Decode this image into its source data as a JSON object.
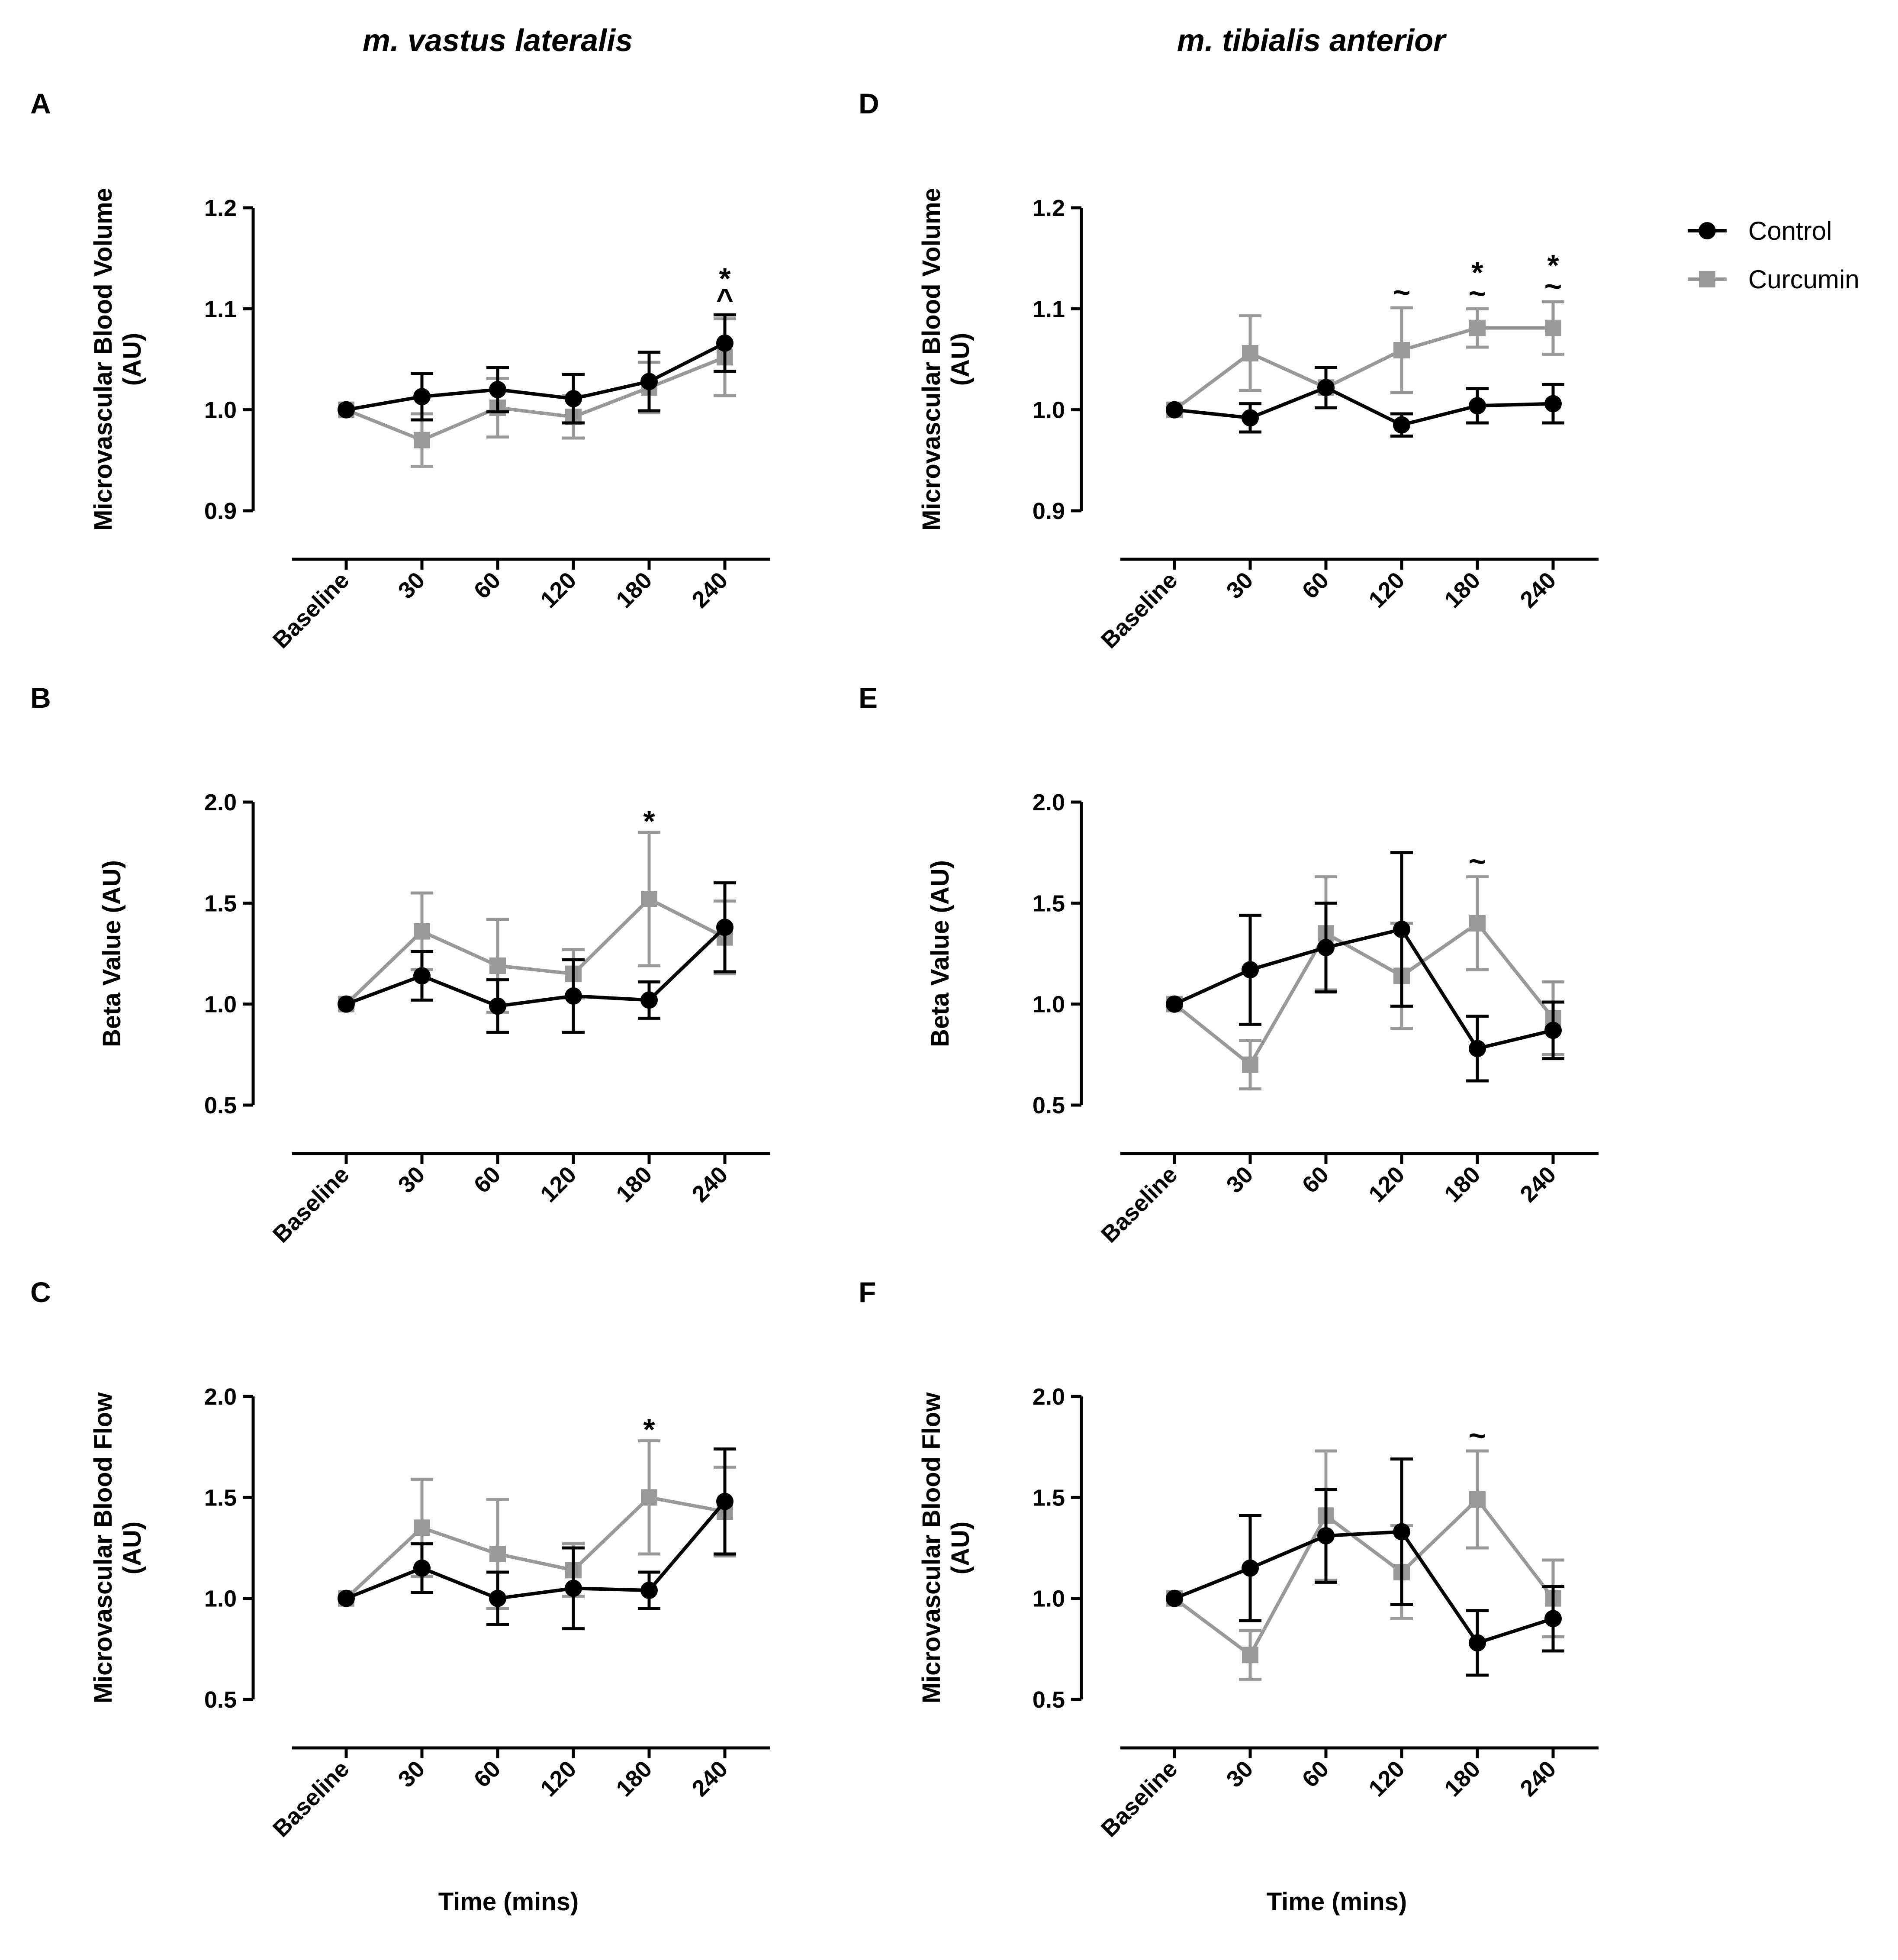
{
  "column_titles": [
    "m. vastus lateralis",
    "m. tibialis anterior"
  ],
  "legend": [
    {
      "label": "Control",
      "marker": "circle",
      "color": "#000000"
    },
    {
      "label": "Curcumin",
      "marker": "square",
      "color": "#999999"
    }
  ],
  "colors": {
    "control": "#000000",
    "curcumin": "#999999"
  },
  "chart_data": [
    {
      "panel": "A",
      "type": "line",
      "categories": [
        "Baseline",
        "30",
        "60",
        "120",
        "180",
        "240"
      ],
      "ylabel": "Microvascular Blood Volume\n(AU)",
      "xlabel": "",
      "ylim": [
        0.9,
        1.2
      ],
      "yticks": [
        "0.9",
        "1.0",
        "1.1",
        "1.2"
      ],
      "series": [
        {
          "name": "Control",
          "values": [
            1.0,
            1.013,
            1.02,
            1.011,
            1.028,
            1.066
          ],
          "err": [
            0,
            0.023,
            0.022,
            0.024,
            0.029,
            0.028
          ]
        },
        {
          "name": "Curcumin",
          "values": [
            1.0,
            0.97,
            1.002,
            0.993,
            1.022,
            1.052
          ],
          "err": [
            0,
            0.026,
            0.029,
            0.021,
            0.025,
            0.038
          ]
        }
      ],
      "annotations": [
        {
          "category": "240",
          "marks": [
            "*",
            "^"
          ]
        }
      ]
    },
    {
      "panel": "B",
      "type": "line",
      "categories": [
        "Baseline",
        "30",
        "60",
        "120",
        "180",
        "240"
      ],
      "ylabel": "Beta Value (AU)",
      "xlabel": "",
      "ylim": [
        0.5,
        2.0
      ],
      "yticks": [
        "0.5",
        "1.0",
        "1.5",
        "2.0"
      ],
      "series": [
        {
          "name": "Control",
          "values": [
            1.0,
            1.14,
            0.99,
            1.04,
            1.02,
            1.38
          ],
          "err": [
            0,
            0.12,
            0.13,
            0.18,
            0.09,
            0.22
          ]
        },
        {
          "name": "Curcumin",
          "values": [
            1.0,
            1.36,
            1.19,
            1.15,
            1.52,
            1.33
          ],
          "err": [
            0,
            0.19,
            0.23,
            0.12,
            0.33,
            0.18
          ]
        }
      ],
      "annotations": [
        {
          "category": "180",
          "marks": [
            "*"
          ]
        }
      ]
    },
    {
      "panel": "C",
      "type": "line",
      "categories": [
        "Baseline",
        "30",
        "60",
        "120",
        "180",
        "240"
      ],
      "ylabel": "Microvascular Blood Flow\n(AU)",
      "xlabel": "Time (mins)",
      "ylim": [
        0.5,
        2.0
      ],
      "yticks": [
        "0.5",
        "1.0",
        "1.5",
        "2.0"
      ],
      "series": [
        {
          "name": "Control",
          "values": [
            1.0,
            1.15,
            1.0,
            1.05,
            1.04,
            1.48
          ],
          "err": [
            0,
            0.12,
            0.13,
            0.2,
            0.09,
            0.26
          ]
        },
        {
          "name": "Curcumin",
          "values": [
            1.0,
            1.35,
            1.22,
            1.14,
            1.5,
            1.43
          ],
          "err": [
            0,
            0.24,
            0.27,
            0.13,
            0.28,
            0.22
          ]
        }
      ],
      "annotations": [
        {
          "category": "180",
          "marks": [
            "*"
          ]
        }
      ]
    },
    {
      "panel": "D",
      "type": "line",
      "categories": [
        "Baseline",
        "30",
        "60",
        "120",
        "180",
        "240"
      ],
      "ylabel": "Microvascular Blood Volume\n(AU)",
      "xlabel": "",
      "ylim": [
        0.9,
        1.2
      ],
      "yticks": [
        "0.9",
        "1.0",
        "1.1",
        "1.2"
      ],
      "series": [
        {
          "name": "Control",
          "values": [
            1.0,
            0.992,
            1.022,
            0.985,
            1.004,
            1.006
          ],
          "err": [
            0,
            0.014,
            0.02,
            0.011,
            0.017,
            0.019
          ]
        },
        {
          "name": "Curcumin",
          "values": [
            1.0,
            1.056,
            1.022,
            1.059,
            1.081,
            1.081
          ],
          "err": [
            0,
            0.037,
            0.02,
            0.042,
            0.019,
            0.026
          ]
        }
      ],
      "annotations": [
        {
          "category": "120",
          "marks": [
            "~"
          ]
        },
        {
          "category": "180",
          "marks": [
            "*",
            "~"
          ]
        },
        {
          "category": "240",
          "marks": [
            "*",
            "~"
          ]
        }
      ]
    },
    {
      "panel": "E",
      "type": "line",
      "categories": [
        "Baseline",
        "30",
        "60",
        "120",
        "180",
        "240"
      ],
      "ylabel": "Beta Value (AU)",
      "xlabel": "",
      "ylim": [
        0.5,
        2.0
      ],
      "yticks": [
        "0.5",
        "1.0",
        "1.5",
        "2.0"
      ],
      "series": [
        {
          "name": "Control",
          "values": [
            1.0,
            1.17,
            1.28,
            1.37,
            0.78,
            0.87
          ],
          "err": [
            0,
            0.27,
            0.22,
            0.38,
            0.16,
            0.14
          ]
        },
        {
          "name": "Curcumin",
          "values": [
            1.0,
            0.7,
            1.35,
            1.14,
            1.4,
            0.93
          ],
          "err": [
            0,
            0.12,
            0.28,
            0.26,
            0.23,
            0.18
          ]
        }
      ],
      "annotations": [
        {
          "category": "180",
          "marks": [
            "~"
          ]
        }
      ]
    },
    {
      "panel": "F",
      "type": "line",
      "categories": [
        "Baseline",
        "30",
        "60",
        "120",
        "180",
        "240"
      ],
      "ylabel": "Microvascular Blood Flow\n(AU)",
      "xlabel": "Time (mins)",
      "ylim": [
        0.5,
        2.0
      ],
      "yticks": [
        "0.5",
        "1.0",
        "1.5",
        "2.0"
      ],
      "series": [
        {
          "name": "Control",
          "values": [
            1.0,
            1.15,
            1.31,
            1.33,
            0.78,
            0.9
          ],
          "err": [
            0,
            0.26,
            0.23,
            0.36,
            0.16,
            0.16
          ]
        },
        {
          "name": "Curcumin",
          "values": [
            1.0,
            0.72,
            1.41,
            1.13,
            1.49,
            1.0
          ],
          "err": [
            0,
            0.12,
            0.32,
            0.23,
            0.24,
            0.19
          ]
        }
      ],
      "annotations": [
        {
          "category": "180",
          "marks": [
            "~"
          ]
        }
      ]
    }
  ]
}
